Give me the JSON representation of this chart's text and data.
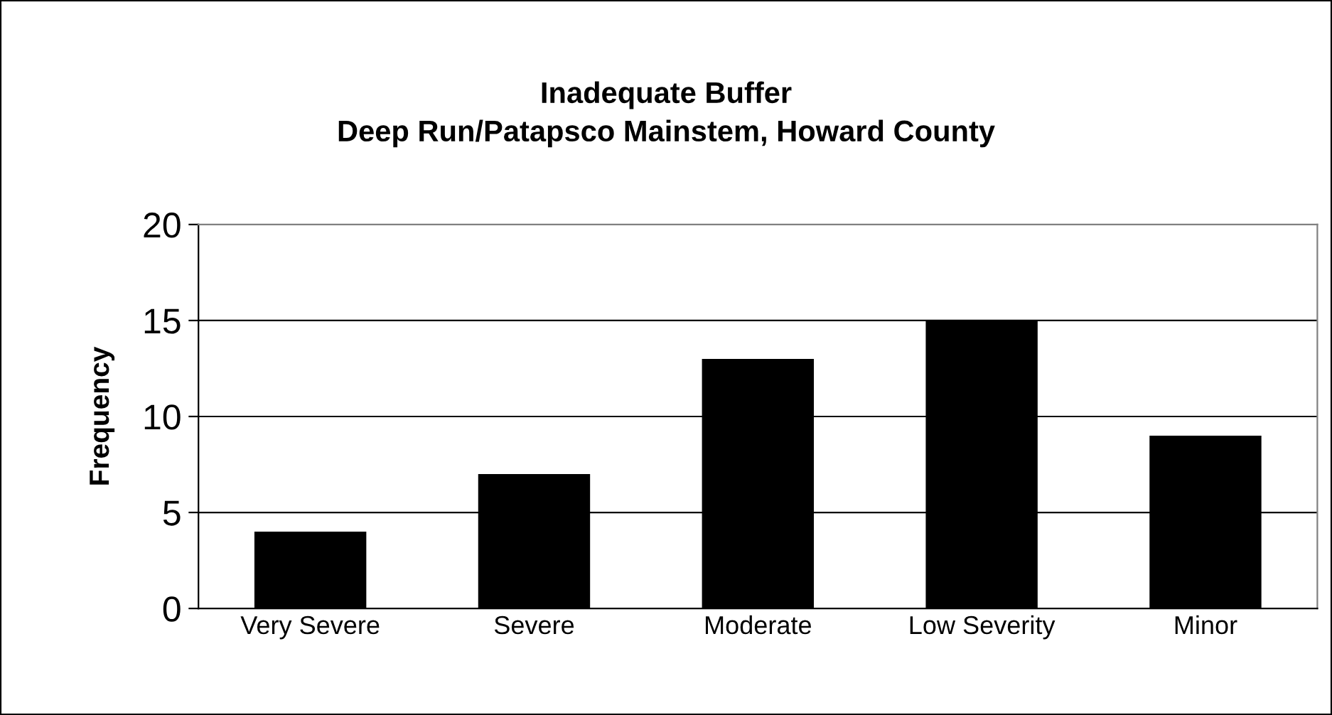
{
  "chart_data": {
    "type": "bar",
    "title": "Inadequate Buffer\nDeep Run/Patapsco Mainstem, Howard County",
    "ylabel": "Frequency",
    "categories": [
      "Very Severe",
      "Severe",
      "Moderate",
      "Low Severity",
      "Minor"
    ],
    "values": [
      4,
      7,
      13,
      15,
      9
    ],
    "color": "#000000",
    "ylim": [
      0,
      20
    ],
    "yticks": [
      0,
      5,
      10,
      15,
      20
    ],
    "grid": "y",
    "legend": false
  }
}
